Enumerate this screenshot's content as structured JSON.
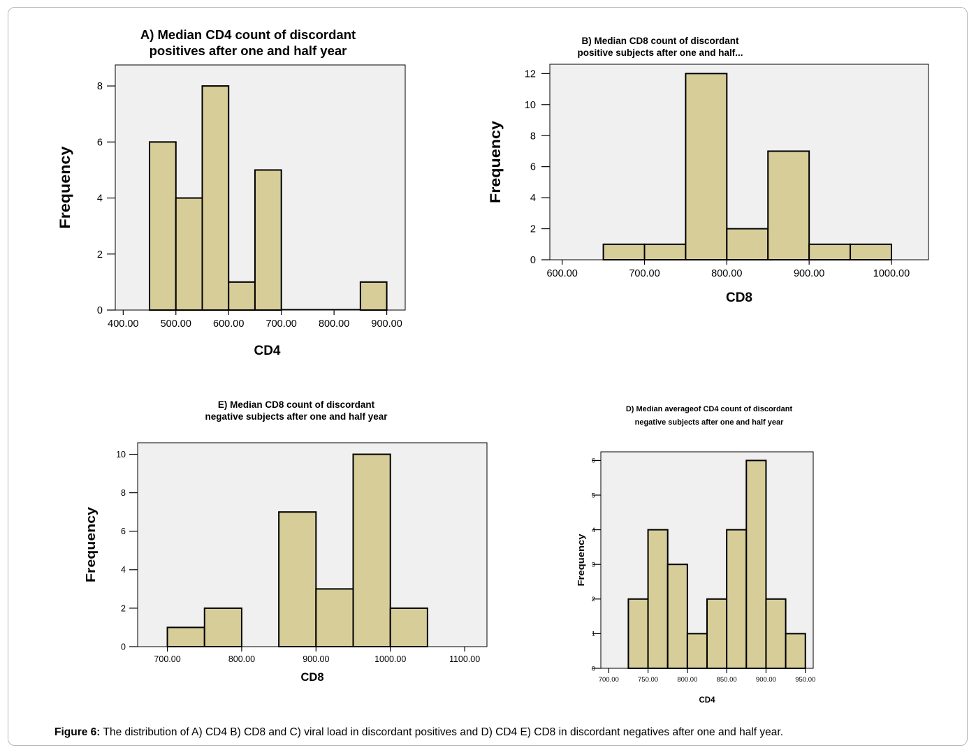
{
  "caption": {
    "label": "Figure 6:",
    "text": " The distribution of A) CD4 B) CD8 and C) viral load in discordant positives and D) CD4 E) CD8 in  discordant negatives after one and half year."
  },
  "colors": {
    "bar_fill": "#d6cd99",
    "plot_bg": "#f0f0f0",
    "bar_stroke": "#000000"
  },
  "chart_data": [
    {
      "id": "A",
      "type": "bar",
      "title_lines": [
        "A) Median CD4 count of discordant",
        "positives after one and half year"
      ],
      "xlabel": "CD4",
      "ylabel": "Frequency",
      "x_ticks": [
        400,
        500,
        600,
        700,
        800,
        900
      ],
      "x_tick_labels": [
        "400.00",
        "500.00",
        "600.00",
        "700.00",
        "800.00",
        "900.00"
      ],
      "y_ticks": [
        0,
        2,
        4,
        6,
        8
      ],
      "y_tick_labels": [
        "0",
        "2",
        "4",
        "6",
        "8"
      ],
      "xlim": [
        385,
        935
      ],
      "ylim": [
        0,
        8.75
      ],
      "bins": [
        {
          "start": 450,
          "end": 500,
          "value": 6
        },
        {
          "start": 500,
          "end": 550,
          "value": 4
        },
        {
          "start": 550,
          "end": 600,
          "value": 8
        },
        {
          "start": 600,
          "end": 650,
          "value": 1
        },
        {
          "start": 650,
          "end": 700,
          "value": 5
        },
        {
          "start": 700,
          "end": 750,
          "value": 0
        },
        {
          "start": 750,
          "end": 800,
          "value": 0
        },
        {
          "start": 800,
          "end": 850,
          "value": 0
        },
        {
          "start": 850,
          "end": 900,
          "value": 1
        }
      ]
    },
    {
      "id": "B",
      "type": "bar",
      "title_lines": [
        "B) Median CD8 count of discordant",
        "positive subjects after one and half..."
      ],
      "xlabel": "CD8",
      "ylabel": "Frequency",
      "x_ticks": [
        600,
        700,
        800,
        900,
        1000
      ],
      "x_tick_labels": [
        "600.00",
        "700.00",
        "800.00",
        "900.00",
        "1000.00"
      ],
      "y_ticks": [
        0,
        2,
        4,
        6,
        8,
        10,
        12
      ],
      "y_tick_labels": [
        "0",
        "2",
        "4",
        "6",
        "8",
        "10",
        "12"
      ],
      "xlim": [
        585,
        1045
      ],
      "ylim": [
        0,
        12.6
      ],
      "bins": [
        {
          "start": 650,
          "end": 700,
          "value": 1
        },
        {
          "start": 700,
          "end": 750,
          "value": 1
        },
        {
          "start": 750,
          "end": 800,
          "value": 12
        },
        {
          "start": 800,
          "end": 850,
          "value": 2
        },
        {
          "start": 850,
          "end": 900,
          "value": 7
        },
        {
          "start": 900,
          "end": 950,
          "value": 1
        },
        {
          "start": 950,
          "end": 1000,
          "value": 1
        }
      ]
    },
    {
      "id": "E",
      "type": "bar",
      "title_lines": [
        "E)  Median CD8 count of discordant",
        "negative subjects after one and half year"
      ],
      "xlabel": "CD8",
      "ylabel": "Frequency",
      "x_ticks": [
        700,
        800,
        900,
        1000,
        1100
      ],
      "x_tick_labels": [
        "700.00",
        "800.00",
        "900.00",
        "1000.00",
        "1100.00"
      ],
      "y_ticks": [
        0,
        2,
        4,
        6,
        8,
        10
      ],
      "y_tick_labels": [
        "0",
        "2",
        "4",
        "6",
        "8",
        "10"
      ],
      "xlim": [
        660,
        1130
      ],
      "ylim": [
        0,
        10.6
      ],
      "bins": [
        {
          "start": 700,
          "end": 750,
          "value": 1
        },
        {
          "start": 750,
          "end": 800,
          "value": 2
        },
        {
          "start": 850,
          "end": 900,
          "value": 7
        },
        {
          "start": 900,
          "end": 950,
          "value": 3
        },
        {
          "start": 950,
          "end": 1000,
          "value": 10
        },
        {
          "start": 1000,
          "end": 1050,
          "value": 2
        }
      ]
    },
    {
      "id": "D",
      "type": "bar",
      "title_lines": [
        "D)  Median  averageof CD4 count of discordant",
        "negative subjects after one and half year"
      ],
      "xlabel": "CD4",
      "ylabel": "Frequency",
      "x_ticks": [
        700,
        750,
        800,
        850,
        900,
        950
      ],
      "x_tick_labels": [
        "700.00",
        "750.00",
        "800.00",
        "850.00",
        "900.00",
        "950.00"
      ],
      "y_ticks": [
        0,
        1,
        2,
        3,
        4,
        5,
        6
      ],
      "y_tick_labels": [
        "0",
        "1",
        "2",
        "3",
        "4",
        "5",
        "6"
      ],
      "xlim": [
        690,
        960
      ],
      "ylim": [
        0,
        6.25
      ],
      "bins": [
        {
          "start": 725,
          "end": 750,
          "value": 2
        },
        {
          "start": 750,
          "end": 775,
          "value": 4
        },
        {
          "start": 775,
          "end": 800,
          "value": 3
        },
        {
          "start": 800,
          "end": 825,
          "value": 1
        },
        {
          "start": 825,
          "end": 850,
          "value": 2
        },
        {
          "start": 850,
          "end": 875,
          "value": 4
        },
        {
          "start": 875,
          "end": 900,
          "value": 6
        },
        {
          "start": 900,
          "end": 925,
          "value": 2
        },
        {
          "start": 925,
          "end": 950,
          "value": 1
        }
      ]
    }
  ]
}
